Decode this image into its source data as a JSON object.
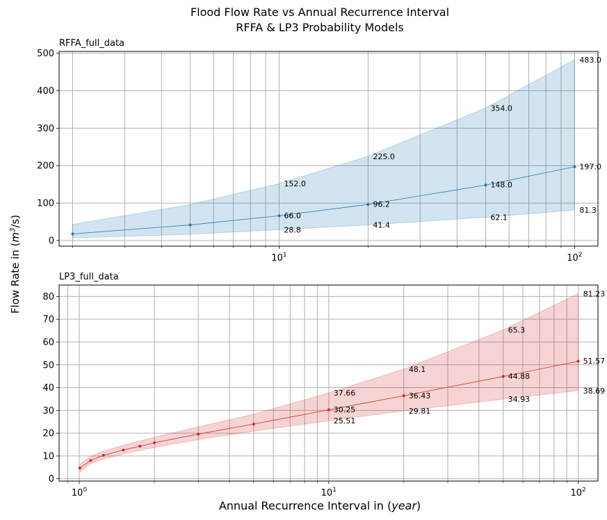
{
  "figure": {
    "title_line1": "Flood Flow Rate vs Annual Recurrence Interval",
    "title_line2": "RFFA & LP3 Probability Models",
    "ylabel_prefix": "Flow Rate in (",
    "ylabel_unit": "m",
    "ylabel_exp": "3",
    "ylabel_suffix": "/s)",
    "xlabel_prefix": "Annual Recurrence Interval in (",
    "xlabel_unit": "year",
    "xlabel_suffix": ")"
  },
  "chart_data": [
    {
      "type": "line",
      "subplot_title": "RFFA_full_data",
      "x_scale": "log",
      "xlim": [
        1.8,
        120
      ],
      "ylim": [
        -15,
        505
      ],
      "grid": true,
      "x_major_ticks": [
        {
          "value": 10,
          "base": "10",
          "exp": "1"
        },
        {
          "value": 100,
          "base": "10",
          "exp": "2"
        }
      ],
      "x_minor_gridlines": [
        2,
        3,
        4,
        5,
        6,
        7,
        8,
        9,
        20,
        30,
        40,
        50,
        60,
        70,
        80,
        90
      ],
      "y_ticks": [
        0,
        100,
        200,
        300,
        400,
        500
      ],
      "series": [
        {
          "color": "#1f77b4",
          "x": [
            2,
            5,
            10,
            20,
            50,
            100
          ],
          "y": [
            17.5,
            41.5,
            66.0,
            96.2,
            148.0,
            197.0
          ],
          "lower": [
            7.0,
            16.5,
            28.8,
            41.4,
            62.1,
            81.3
          ],
          "upper": [
            43.0,
            96.0,
            152.0,
            225.0,
            354.0,
            483.0
          ]
        }
      ],
      "annotations": [
        {
          "x": 10,
          "y": 66.0,
          "text": "66.0",
          "pos": "mid"
        },
        {
          "x": 20,
          "y": 96.2,
          "text": "96.2",
          "pos": "mid"
        },
        {
          "x": 50,
          "y": 148.0,
          "text": "148.0",
          "pos": "mid"
        },
        {
          "x": 100,
          "y": 197.0,
          "text": "197.0",
          "pos": "mid"
        },
        {
          "x": 10,
          "y": 28.8,
          "text": "28.8",
          "pos": "below"
        },
        {
          "x": 20,
          "y": 41.4,
          "text": "41.4",
          "pos": "below"
        },
        {
          "x": 50,
          "y": 62.1,
          "text": "62.1",
          "pos": "below"
        },
        {
          "x": 100,
          "y": 81.3,
          "text": "81.3",
          "pos": "below"
        },
        {
          "x": 10,
          "y": 152.0,
          "text": "152.0",
          "pos": "above"
        },
        {
          "x": 20,
          "y": 225.0,
          "text": "225.0",
          "pos": "above"
        },
        {
          "x": 50,
          "y": 354.0,
          "text": "354.0",
          "pos": "above"
        },
        {
          "x": 100,
          "y": 483.0,
          "text": "483.0",
          "pos": "above"
        }
      ]
    },
    {
      "type": "line",
      "subplot_title": "LP3_full_data",
      "x_scale": "log",
      "xlim": [
        0.83,
        120
      ],
      "ylim": [
        -1,
        85
      ],
      "grid": true,
      "x_major_ticks": [
        {
          "value": 1,
          "base": "10",
          "exp": "0"
        },
        {
          "value": 10,
          "base": "10",
          "exp": "1"
        },
        {
          "value": 100,
          "base": "10",
          "exp": "2"
        }
      ],
      "x_minor_gridlines": [
        0.9,
        2,
        3,
        4,
        5,
        6,
        7,
        8,
        9,
        20,
        30,
        40,
        50,
        60,
        70,
        80,
        90
      ],
      "y_ticks": [
        0,
        10,
        20,
        30,
        40,
        50,
        60,
        70,
        80
      ],
      "series": [
        {
          "color": "#d62728",
          "x": [
            1.005,
            1.11,
            1.25,
            1.5,
            1.75,
            2,
            3,
            5,
            10,
            20,
            50,
            100
          ],
          "y": [
            4.7,
            8.0,
            10.3,
            12.6,
            14.3,
            15.8,
            19.6,
            24.0,
            30.25,
            36.43,
            44.88,
            51.57
          ],
          "lower": [
            3.0,
            6.6,
            8.7,
            10.8,
            12.4,
            13.8,
            17.2,
            20.9,
            25.51,
            29.81,
            34.93,
            38.69
          ],
          "upper": [
            6.4,
            9.7,
            12.1,
            14.7,
            16.6,
            18.3,
            22.8,
            28.3,
            37.66,
            48.1,
            65.3,
            81.23
          ]
        }
      ],
      "annotations": [
        {
          "x": 10,
          "y": 30.25,
          "text": "30.25",
          "pos": "mid"
        },
        {
          "x": 20,
          "y": 36.43,
          "text": "36.43",
          "pos": "mid"
        },
        {
          "x": 50,
          "y": 44.88,
          "text": "44.88",
          "pos": "mid"
        },
        {
          "x": 100,
          "y": 51.57,
          "text": "51.57",
          "pos": "mid"
        },
        {
          "x": 10,
          "y": 25.51,
          "text": "25.51",
          "pos": "below"
        },
        {
          "x": 20,
          "y": 29.81,
          "text": "29.81",
          "pos": "below"
        },
        {
          "x": 50,
          "y": 34.93,
          "text": "34.93",
          "pos": "below"
        },
        {
          "x": 100,
          "y": 38.69,
          "text": "38.69",
          "pos": "below"
        },
        {
          "x": 10,
          "y": 37.66,
          "text": "37.66",
          "pos": "above"
        },
        {
          "x": 20,
          "y": 48.1,
          "text": "48.1",
          "pos": "above"
        },
        {
          "x": 50,
          "y": 65.3,
          "text": "65.3",
          "pos": "above"
        },
        {
          "x": 100,
          "y": 81.23,
          "text": "81.23",
          "pos": "above"
        }
      ]
    }
  ]
}
